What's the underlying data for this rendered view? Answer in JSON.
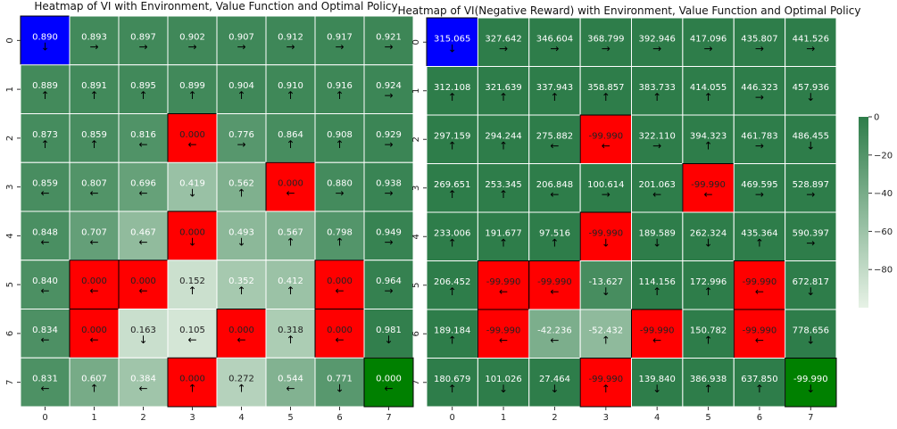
{
  "charts": [
    {
      "type": "heatmap",
      "title": "Heatmap of VI with Environment, Value Function and Optimal Policy",
      "x_ticks": [
        "0",
        "1",
        "2",
        "3",
        "4",
        "5",
        "6",
        "7"
      ],
      "y_ticks": [
        "0",
        "1",
        "2",
        "3",
        "4",
        "5",
        "6",
        "7"
      ],
      "value_range": [
        0,
        1
      ],
      "colorbar": false,
      "values": [
        [
          "0.890",
          "0.893",
          "0.897",
          "0.902",
          "0.907",
          "0.912",
          "0.917",
          "0.921"
        ],
        [
          "0.889",
          "0.891",
          "0.895",
          "0.899",
          "0.904",
          "0.910",
          "0.916",
          "0.924"
        ],
        [
          "0.873",
          "0.859",
          "0.816",
          "0.000",
          "0.776",
          "0.864",
          "0.908",
          "0.929"
        ],
        [
          "0.859",
          "0.807",
          "0.696",
          "0.419",
          "0.562",
          "0.000",
          "0.880",
          "0.938"
        ],
        [
          "0.848",
          "0.707",
          "0.467",
          "0.000",
          "0.493",
          "0.567",
          "0.798",
          "0.949"
        ],
        [
          "0.840",
          "0.000",
          "0.000",
          "0.152",
          "0.352",
          "0.412",
          "0.000",
          "0.964"
        ],
        [
          "0.834",
          "0.000",
          "0.163",
          "0.105",
          "0.000",
          "0.318",
          "0.000",
          "0.981"
        ],
        [
          "0.831",
          "0.607",
          "0.384",
          "0.000",
          "0.272",
          "0.544",
          "0.771",
          "0.000"
        ]
      ],
      "arrows": [
        [
          "↓",
          "→",
          "→",
          "→",
          "→",
          "→",
          "→",
          "→"
        ],
        [
          "↑",
          "↑",
          "↑",
          "↑",
          "↑",
          "↑",
          "↑",
          "→"
        ],
        [
          "↑",
          "↑",
          "←",
          "←",
          "→",
          "↑",
          "↑",
          "→"
        ],
        [
          "←",
          "←",
          "←",
          "↓",
          "↑",
          "←",
          "→",
          "→"
        ],
        [
          "←",
          "←",
          "←",
          "↓",
          "↓",
          "↑",
          "↑",
          "→"
        ],
        [
          "←",
          "←",
          "←",
          "↑",
          "↑",
          "↑",
          "←",
          "→"
        ],
        [
          "←",
          "←",
          "↓",
          "←",
          "←",
          "↑",
          "←",
          "↓"
        ],
        [
          "←",
          "↑",
          "←",
          "↑",
          "↑",
          "←",
          "↓",
          "←"
        ]
      ],
      "cell_types": [
        [
          "S",
          "F",
          "F",
          "F",
          "F",
          "F",
          "F",
          "F"
        ],
        [
          "F",
          "F",
          "F",
          "F",
          "F",
          "F",
          "F",
          "F"
        ],
        [
          "F",
          "F",
          "F",
          "H",
          "F",
          "F",
          "F",
          "F"
        ],
        [
          "F",
          "F",
          "F",
          "F",
          "F",
          "H",
          "F",
          "F"
        ],
        [
          "F",
          "F",
          "F",
          "H",
          "F",
          "F",
          "F",
          "F"
        ],
        [
          "F",
          "H",
          "H",
          "F",
          "F",
          "F",
          "H",
          "F"
        ],
        [
          "F",
          "H",
          "F",
          "F",
          "H",
          "F",
          "H",
          "F"
        ],
        [
          "F",
          "F",
          "F",
          "H",
          "F",
          "F",
          "F",
          "G"
        ]
      ]
    },
    {
      "type": "heatmap",
      "title": "Heatmap of VI(Negative Reward) with Environment, Value Function and Optimal Policy",
      "x_ticks": [
        "0",
        "1",
        "2",
        "3",
        "4",
        "5",
        "6",
        "7"
      ],
      "y_ticks": [
        "0",
        "1",
        "2",
        "3",
        "4",
        "5",
        "6",
        "7"
      ],
      "value_range": [
        -99.99,
        0
      ],
      "colorbar": true,
      "colorbar_ticks": [
        "0",
        "−20",
        "−40",
        "−60",
        "−80"
      ],
      "colorbar_tick_values": [
        0,
        -20,
        -40,
        -60,
        -80
      ],
      "values": [
        [
          "315.065",
          "327.642",
          "346.604",
          "368.799",
          "392.946",
          "417.096",
          "435.807",
          "441.526"
        ],
        [
          "312.108",
          "321.639",
          "337.943",
          "358.857",
          "383.733",
          "414.055",
          "446.323",
          "457.936"
        ],
        [
          "297.159",
          "294.244",
          "275.882",
          "-99.990",
          "322.110",
          "394.323",
          "461.783",
          "486.455"
        ],
        [
          "269.651",
          "253.345",
          "206.848",
          "100.614",
          "201.063",
          "-99.990",
          "469.595",
          "528.897"
        ],
        [
          "233.006",
          "191.677",
          "97.516",
          "-99.990",
          "189.589",
          "262.324",
          "435.364",
          "590.397"
        ],
        [
          "206.452",
          "-99.990",
          "-99.990",
          "-13.627",
          "114.156",
          "172.996",
          "-99.990",
          "672.817"
        ],
        [
          "189.184",
          "-99.990",
          "-42.236",
          "-52.432",
          "-99.990",
          "150.782",
          "-99.990",
          "778.656"
        ],
        [
          "180.679",
          "101.026",
          "27.464",
          "-99.990",
          "139.840",
          "386.938",
          "637.850",
          "-99.990"
        ]
      ],
      "arrows": [
        [
          "↓",
          "→",
          "→",
          "→",
          "→",
          "→",
          "→",
          "→"
        ],
        [
          "↑",
          "↑",
          "↑",
          "↑",
          "↑",
          "↑",
          "→",
          "↓"
        ],
        [
          "↑",
          "↑",
          "←",
          "←",
          "→",
          "↑",
          "→",
          "↓"
        ],
        [
          "↑",
          "↑",
          "←",
          "→",
          "←",
          "←",
          "→",
          "→"
        ],
        [
          "↑",
          "↑",
          "↑",
          "↓",
          "↓",
          "↓",
          "↑",
          "→"
        ],
        [
          "↑",
          "←",
          "←",
          "↓",
          "↑",
          "↑",
          "←",
          "↓"
        ],
        [
          "↑",
          "←",
          "←",
          "↑",
          "←",
          "↑",
          "←",
          "↓"
        ],
        [
          "↑",
          "↓",
          "↓",
          "↑",
          "↓",
          "↑",
          "↑",
          "↓"
        ]
      ],
      "cell_types": [
        [
          "S",
          "F",
          "F",
          "F",
          "F",
          "F",
          "F",
          "F"
        ],
        [
          "F",
          "F",
          "F",
          "F",
          "F",
          "F",
          "F",
          "F"
        ],
        [
          "F",
          "F",
          "F",
          "H",
          "F",
          "F",
          "F",
          "F"
        ],
        [
          "F",
          "F",
          "F",
          "F",
          "F",
          "H",
          "F",
          "F"
        ],
        [
          "F",
          "F",
          "F",
          "H",
          "F",
          "F",
          "F",
          "F"
        ],
        [
          "F",
          "H",
          "H",
          "F",
          "F",
          "F",
          "H",
          "F"
        ],
        [
          "F",
          "H",
          "F",
          "F",
          "H",
          "F",
          "H",
          "F"
        ],
        [
          "F",
          "F",
          "F",
          "H",
          "F",
          "F",
          "F",
          "G"
        ]
      ]
    }
  ],
  "colors": {
    "start": "#0000ff",
    "hole": "#ff0000",
    "goal": "#008000",
    "cmap_low": "#e7f2e6",
    "cmap_high": "#2e7d4a"
  }
}
